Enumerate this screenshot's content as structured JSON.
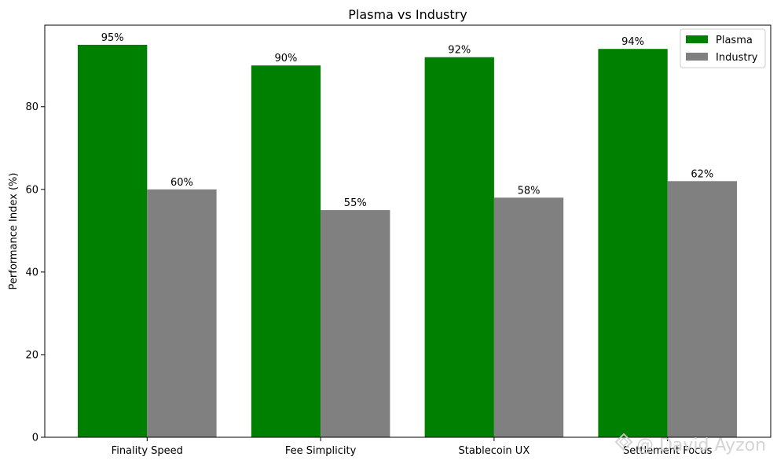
{
  "chart_data": {
    "type": "bar",
    "title": "Plasma vs Industry",
    "xlabel": "",
    "ylabel": "Performance Index (%)",
    "categories": [
      "Finality Speed",
      "Fee Simplicity",
      "Stablecoin UX",
      "Settlement Focus"
    ],
    "series": [
      {
        "name": "Plasma",
        "values": [
          95,
          90,
          92,
          94
        ],
        "labels": [
          "95%",
          "90%",
          "92%",
          "94%"
        ],
        "color": "#008000"
      },
      {
        "name": "Industry",
        "values": [
          60,
          55,
          58,
          62
        ],
        "labels": [
          "60%",
          "55%",
          "58%",
          "62%"
        ],
        "color": "#808080"
      }
    ],
    "ylim": [
      0,
      99.75
    ],
    "yticks": [
      0,
      20,
      40,
      60,
      80
    ],
    "ytick_labels": [
      "0",
      "20",
      "40",
      "60",
      "80"
    ],
    "grid": false,
    "legend": "top-right"
  },
  "watermark": {
    "text": "@ David Ayzon"
  }
}
